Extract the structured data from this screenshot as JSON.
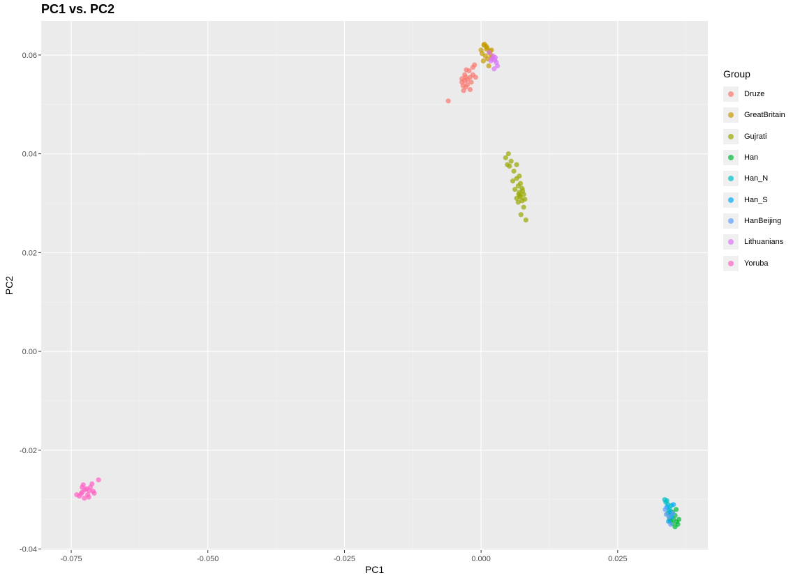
{
  "chart_data": {
    "type": "scatter",
    "title": "PC1 vs. PC2",
    "xlabel": "PC1",
    "ylabel": "PC2",
    "xlim": [
      -0.0805,
      0.0415
    ],
    "ylim": [
      -0.0402,
      0.0669
    ],
    "x_ticks": [
      -0.075,
      -0.05,
      -0.025,
      0.0,
      0.025
    ],
    "x_tick_labels": [
      "-0.075",
      "-0.050",
      "-0.025",
      "0.000",
      "0.025"
    ],
    "y_ticks": [
      -0.04,
      -0.02,
      0.0,
      0.02,
      0.04,
      0.06
    ],
    "y_tick_labels": [
      "-0.04",
      "-0.02",
      "0.00",
      "0.02",
      "0.04",
      "0.06"
    ],
    "grid": true,
    "legend_title": "Group",
    "legend_position": "right",
    "series": [
      {
        "name": "Druze",
        "color": "#F8766D",
        "points": [
          [
            -0.006,
            0.0507
          ],
          [
            -0.003,
            0.056
          ],
          [
            -0.0025,
            0.055
          ],
          [
            -0.0035,
            0.0545
          ],
          [
            -0.0028,
            0.0535
          ],
          [
            -0.002,
            0.0555
          ],
          [
            -0.0015,
            0.0575
          ],
          [
            -0.0032,
            0.0528
          ],
          [
            -0.0022,
            0.0568
          ],
          [
            -0.0018,
            0.0545
          ],
          [
            -0.0028,
            0.0555
          ],
          [
            -0.0012,
            0.058
          ],
          [
            -0.0025,
            0.054
          ],
          [
            -0.0035,
            0.0552
          ],
          [
            -0.002,
            0.053
          ],
          [
            -0.003,
            0.0548
          ],
          [
            -0.0015,
            0.056
          ],
          [
            -0.0027,
            0.057
          ],
          [
            -0.001,
            0.0555
          ],
          [
            -0.0033,
            0.0538
          ]
        ]
      },
      {
        "name": "GreatBritain",
        "color": "#C49A00",
        "points": [
          [
            0.0005,
            0.062
          ],
          [
            0.001,
            0.0612
          ],
          [
            0.0015,
            0.0605
          ],
          [
            0.0008,
            0.0598
          ],
          [
            0.0012,
            0.0592
          ],
          [
            0.0,
            0.061
          ],
          [
            0.0018,
            0.06
          ],
          [
            0.0006,
            0.0622
          ],
          [
            0.002,
            0.0595
          ],
          [
            0.0004,
            0.0588
          ],
          [
            0.0011,
            0.0615
          ],
          [
            0.0016,
            0.0608
          ],
          [
            0.0002,
            0.0603
          ],
          [
            0.0014,
            0.0578
          ],
          [
            0.0009,
            0.0618
          ],
          [
            0.0019,
            0.061
          ]
        ]
      },
      {
        "name": "Gujrati",
        "color": "#99A800",
        "points": [
          [
            0.005,
            0.04
          ],
          [
            0.0045,
            0.0392
          ],
          [
            0.0055,
            0.0385
          ],
          [
            0.0048,
            0.0378
          ],
          [
            0.0052,
            0.0375
          ],
          [
            0.0065,
            0.0378
          ],
          [
            0.006,
            0.0365
          ],
          [
            0.007,
            0.0355
          ],
          [
            0.0065,
            0.035
          ],
          [
            0.0058,
            0.0345
          ],
          [
            0.0072,
            0.034
          ],
          [
            0.0068,
            0.0335
          ],
          [
            0.0075,
            0.033
          ],
          [
            0.0062,
            0.0328
          ],
          [
            0.007,
            0.0322
          ],
          [
            0.0078,
            0.0318
          ],
          [
            0.0072,
            0.0312
          ],
          [
            0.008,
            0.0308
          ],
          [
            0.0075,
            0.0305
          ],
          [
            0.0068,
            0.0302
          ],
          [
            0.0078,
            0.0292
          ],
          [
            0.0073,
            0.0277
          ],
          [
            0.0082,
            0.0266
          ],
          [
            0.0065,
            0.031
          ],
          [
            0.0071,
            0.0315
          ],
          [
            0.0076,
            0.0325
          ],
          [
            0.0069,
            0.0318
          ]
        ]
      },
      {
        "name": "Han",
        "color": "#00BA38",
        "points": [
          [
            0.035,
            -0.0325
          ],
          [
            0.0355,
            -0.0332
          ],
          [
            0.0345,
            -0.0338
          ],
          [
            0.0358,
            -0.0345
          ],
          [
            0.0352,
            -0.034
          ],
          [
            0.0348,
            -0.033
          ],
          [
            0.036,
            -0.035
          ],
          [
            0.0355,
            -0.0355
          ],
          [
            0.0342,
            -0.0328
          ],
          [
            0.0362,
            -0.034
          ],
          [
            0.035,
            -0.0348
          ],
          [
            0.0357,
            -0.032
          ],
          [
            0.0346,
            -0.0343
          ]
        ]
      },
      {
        "name": "Han_N",
        "color": "#00BFC4",
        "points": [
          [
            0.0338,
            -0.0305
          ],
          [
            0.0342,
            -0.031
          ],
          [
            0.0345,
            -0.0318
          ],
          [
            0.034,
            -0.0302
          ],
          [
            0.0348,
            -0.0312
          ],
          [
            0.0344,
            -0.0322
          ],
          [
            0.0336,
            -0.03
          ]
        ]
      },
      {
        "name": "Han_S",
        "color": "#00A9FF",
        "points": [
          [
            0.034,
            -0.0315
          ],
          [
            0.0346,
            -0.0326
          ],
          [
            0.0352,
            -0.031
          ],
          [
            0.0349,
            -0.0335
          ],
          [
            0.0343,
            -0.0344
          ]
        ]
      },
      {
        "name": "HanBeijing",
        "color": "#619CFF",
        "points": [
          [
            0.0337,
            -0.032
          ],
          [
            0.0344,
            -0.0335
          ],
          [
            0.0351,
            -0.0328
          ],
          [
            0.0339,
            -0.033
          ],
          [
            0.0347,
            -0.035
          ]
        ]
      },
      {
        "name": "Lithuanians",
        "color": "#DB72FB",
        "points": [
          [
            0.0015,
            0.0605
          ],
          [
            0.0022,
            0.0598
          ],
          [
            0.0025,
            0.059
          ],
          [
            0.0028,
            0.0585
          ],
          [
            0.002,
            0.0592
          ],
          [
            0.003,
            0.0578
          ],
          [
            0.0024,
            0.0572
          ],
          [
            0.0018,
            0.0588
          ],
          [
            0.0026,
            0.0595
          ]
        ]
      },
      {
        "name": "Yoruba",
        "color": "#FF61C3",
        "points": [
          [
            -0.073,
            -0.0285
          ],
          [
            -0.0725,
            -0.028
          ],
          [
            -0.072,
            -0.029
          ],
          [
            -0.0715,
            -0.0275
          ],
          [
            -0.071,
            -0.0283
          ],
          [
            -0.0735,
            -0.0293
          ],
          [
            -0.0728,
            -0.027
          ],
          [
            -0.0718,
            -0.0295
          ],
          [
            -0.0722,
            -0.0278
          ],
          [
            -0.0712,
            -0.0268
          ],
          [
            -0.0732,
            -0.0288
          ],
          [
            -0.074,
            -0.029
          ],
          [
            -0.07,
            -0.026
          ],
          [
            -0.0708,
            -0.0287
          ],
          [
            -0.0726,
            -0.0297
          ],
          [
            -0.0717,
            -0.0282
          ],
          [
            -0.073,
            -0.0275
          ]
        ]
      }
    ]
  }
}
